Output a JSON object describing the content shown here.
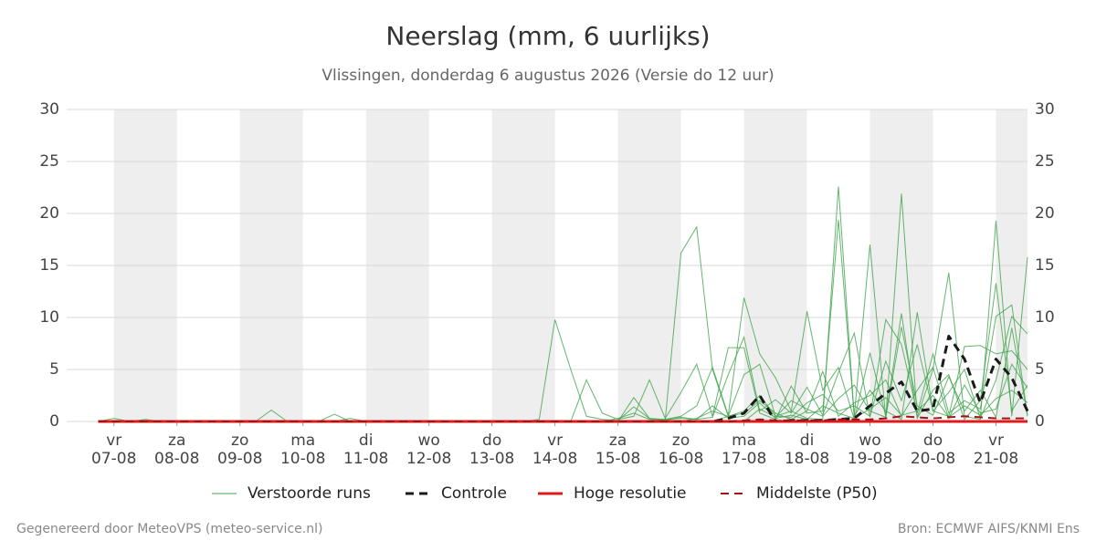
{
  "chart_data": {
    "type": "line",
    "title": "Neerslag (mm, 6 uurlijks)",
    "subtitle": "Vlissingen, donderdag  6 augustus 2026 (Versie do 12 uur)",
    "footer_left": "Gegenereerd door MeteoVPS (meteo-service.nl)",
    "footer_right": "Bron: ECMWF AIFS/KNMI Ens",
    "x": [
      -0.25,
      0,
      0.25,
      0.5,
      0.75,
      1,
      1.25,
      1.5,
      1.75,
      2,
      2.25,
      2.5,
      2.75,
      3,
      3.25,
      3.5,
      3.75,
      4,
      4.25,
      4.5,
      4.75,
      5,
      5.25,
      5.5,
      5.75,
      6,
      6.25,
      6.5,
      6.75,
      7,
      7.25,
      7.5,
      7.75,
      8,
      8.25,
      8.5,
      8.75,
      9,
      9.25,
      9.5,
      9.75,
      10,
      10.25,
      10.5,
      10.75,
      11,
      11.25,
      11.5,
      11.75,
      12,
      12.25,
      12.5,
      12.75,
      13,
      13.25,
      13.5,
      13.75,
      14,
      14.25,
      14.5
    ],
    "xlim": [
      -0.75,
      14.5
    ],
    "xticks": [
      {
        "value": 0,
        "label": "07-08",
        "weekday": "vr"
      },
      {
        "value": 1,
        "label": "08-08",
        "weekday": "za"
      },
      {
        "value": 2,
        "label": "09-08",
        "weekday": "zo"
      },
      {
        "value": 3,
        "label": "10-08",
        "weekday": "ma"
      },
      {
        "value": 4,
        "label": "11-08",
        "weekday": "di"
      },
      {
        "value": 5,
        "label": "12-08",
        "weekday": "wo"
      },
      {
        "value": 6,
        "label": "13-08",
        "weekday": "do"
      },
      {
        "value": 7,
        "label": "14-08",
        "weekday": "vr"
      },
      {
        "value": 8,
        "label": "15-08",
        "weekday": "za"
      },
      {
        "value": 9,
        "label": "16-08",
        "weekday": "zo"
      },
      {
        "value": 10,
        "label": "17-08",
        "weekday": "ma"
      },
      {
        "value": 11,
        "label": "18-08",
        "weekday": "di"
      },
      {
        "value": 12,
        "label": "19-08",
        "weekday": "wo"
      },
      {
        "value": 13,
        "label": "20-08",
        "weekday": "do"
      },
      {
        "value": 14,
        "label": "21-08",
        "weekday": "vr"
      }
    ],
    "ylim": [
      0,
      30
    ],
    "yticks": [
      0,
      5,
      10,
      15,
      20,
      25,
      30
    ],
    "grid": true,
    "ensemble": {
      "name": "Verstoorde runs",
      "color": "#3fa34a",
      "members": [
        [
          0,
          0.3,
          0,
          0,
          0,
          0,
          0,
          0,
          0,
          0,
          0,
          1.1,
          0,
          0,
          0,
          0,
          0,
          0,
          0,
          0,
          0,
          0,
          0,
          0,
          0,
          0,
          0,
          0,
          0.2,
          9.8,
          5.0,
          0.5,
          0.2,
          0.1,
          1.4,
          0.3,
          0.1,
          16.2,
          18.7,
          5.0,
          0.5,
          1.0,
          2.5,
          0.5,
          1.0,
          0.3,
          0.2,
          22.6,
          0.5,
          3.0,
          1.0,
          0.2,
          10.5,
          1.0,
          0.5,
          7.2,
          7.3,
          6.5,
          6.8,
          5.0
        ],
        [
          0,
          0,
          0,
          0,
          0,
          0,
          0,
          0,
          0,
          0,
          0,
          0,
          0,
          0,
          0,
          0.7,
          0,
          0,
          0,
          0,
          0,
          0,
          0,
          0,
          0,
          0,
          0,
          0,
          0,
          0,
          0,
          4.0,
          0.8,
          0.2,
          0.5,
          4.0,
          0.3,
          2.8,
          5.5,
          0.5,
          7.1,
          7.1,
          0.8,
          0.2,
          3.4,
          0.8,
          1.0,
          19.4,
          0.5,
          17.0,
          0.3,
          21.9,
          0.4,
          5.0,
          14.3,
          0.5,
          0.2,
          19.3,
          0.5,
          15.8
        ],
        [
          0,
          0,
          0,
          0,
          0,
          0,
          0,
          0,
          0,
          0,
          0,
          0,
          0,
          0,
          0,
          0,
          0,
          0,
          0,
          0,
          0,
          0,
          0,
          0,
          0,
          0,
          0,
          0,
          0,
          0,
          0,
          0,
          0,
          0,
          2.3,
          0.3,
          0.2,
          0.5,
          1.5,
          5.2,
          0.6,
          11.9,
          6.5,
          4.2,
          1.0,
          10.6,
          3.0,
          5.2,
          0.2,
          6.6,
          0.5,
          10.4,
          0.3,
          3.0,
          4.5,
          0.2,
          2.0,
          13.3,
          1.0,
          3.5
        ],
        [
          0,
          0,
          0,
          0,
          0,
          0,
          0,
          0,
          0,
          0,
          0,
          0,
          0,
          0,
          0,
          0,
          0,
          0,
          0,
          0,
          0,
          0,
          0,
          0,
          0,
          0,
          0,
          0,
          0,
          0,
          0,
          0,
          0,
          0,
          0,
          0,
          0.2,
          0.3,
          0.2,
          0.4,
          4.5,
          8.1,
          1.0,
          2.1,
          0.8,
          3.3,
          0.6,
          4.7,
          8.5,
          0.4,
          9.8,
          7.4,
          0.8,
          6.5,
          0.8,
          2.0,
          1.2,
          10.1,
          11.2,
          0.5
        ],
        [
          0,
          0,
          0,
          0,
          0,
          0,
          0,
          0,
          0,
          0,
          0,
          0,
          0,
          0,
          0,
          0,
          0,
          0,
          0,
          0,
          0,
          0,
          0,
          0,
          0,
          0,
          0,
          0,
          0,
          0,
          0,
          0,
          0,
          0,
          0,
          0,
          0,
          0,
          0,
          0,
          0.5,
          4.5,
          5.5,
          0.5,
          0.4,
          1.8,
          2.6,
          1.0,
          1.5,
          0.5,
          5.8,
          2.0,
          7.4,
          1.0,
          2.8,
          5.0,
          0.3,
          4.0,
          10.1,
          8.4
        ],
        [
          0,
          0,
          0,
          0,
          0,
          0,
          0,
          0,
          0,
          0,
          0,
          0,
          0,
          0,
          0,
          0,
          0,
          0,
          0,
          0,
          0,
          0,
          0,
          0,
          0,
          0,
          0,
          0,
          0,
          0,
          0,
          0,
          0,
          0,
          0,
          0,
          0,
          0,
          0,
          0,
          0,
          0,
          1.2,
          0.4,
          2.0,
          1.2,
          0.5,
          2.2,
          3.5,
          1.0,
          0.4,
          9.1,
          1.5,
          0.6,
          4.3,
          1.0,
          3.0,
          0.4,
          9.0,
          0.6
        ],
        [
          0,
          0,
          0,
          0,
          0,
          0,
          0,
          0,
          0,
          0,
          0,
          0,
          0,
          0,
          0,
          0,
          0,
          0,
          0,
          0,
          0,
          0,
          0,
          0,
          0,
          0,
          0,
          0,
          0,
          0,
          0,
          0,
          0,
          0,
          0,
          0,
          0,
          0,
          0.3,
          1.0,
          0.5,
          0.8,
          2.0,
          0.8,
          0.2,
          1.0,
          4.8,
          0.5,
          1.8,
          2.5,
          4.0,
          0.5,
          3.0,
          5.2,
          0.3,
          3.5,
          0.8,
          1.2,
          5.5,
          3.2
        ],
        [
          0,
          0,
          0,
          0.2,
          0,
          0,
          0,
          0,
          0,
          0,
          0,
          0,
          0,
          0,
          0,
          0,
          0.3,
          0,
          0,
          0,
          0,
          0,
          0,
          0,
          0,
          0,
          0,
          0,
          0,
          0,
          0,
          0,
          0,
          0.3,
          0.8,
          0.2,
          0.1,
          0.4,
          0.2,
          1.5,
          0.3,
          0.5,
          1.8,
          0.3,
          0.6,
          0.2,
          1.5,
          0.8,
          0.3,
          1.2,
          2.3,
          0.6,
          1.0,
          2.5,
          0.4,
          1.5,
          0.6,
          2.2,
          3.0,
          1.8
        ]
      ]
    },
    "series": [
      {
        "name": "Controle",
        "color": "#1a1a1a",
        "dash": true,
        "width": 3,
        "values": [
          0,
          0,
          0,
          0,
          0,
          0,
          0,
          0,
          0,
          0,
          0,
          0,
          0,
          0,
          0,
          0,
          0,
          0,
          0,
          0,
          0,
          0,
          0,
          0,
          0,
          0,
          0,
          0,
          0,
          0,
          0,
          0,
          0,
          0,
          0,
          0,
          0,
          0,
          0,
          0,
          0.3,
          0.8,
          2.5,
          0,
          0.1,
          0.1,
          0.1,
          0.2,
          0.3,
          1.5,
          2.7,
          3.8,
          1.0,
          1.2,
          8.2,
          6.0,
          1.8,
          6.0,
          4.2,
          1.0
        ]
      },
      {
        "name": "Hoge resolutie",
        "color": "#e01a1a",
        "dash": false,
        "width": 3,
        "values": [
          0,
          0,
          0,
          0,
          0,
          0,
          0,
          0,
          0,
          0,
          0,
          0,
          0,
          0,
          0,
          0,
          0,
          0,
          0,
          0,
          0,
          0,
          0,
          0,
          0,
          0,
          0,
          0,
          0,
          0,
          0,
          0,
          0,
          0,
          0,
          0,
          0,
          0,
          0,
          0,
          0,
          0,
          0,
          0,
          0,
          0,
          0,
          0,
          0,
          0,
          0,
          0,
          0,
          0,
          0,
          0,
          0,
          0,
          0,
          0
        ]
      },
      {
        "name": "Middelste (P50)",
        "color": "#a01414",
        "dash": true,
        "width": 2,
        "values": [
          0,
          0,
          0,
          0,
          0,
          0,
          0,
          0,
          0,
          0,
          0,
          0,
          0,
          0,
          0,
          0,
          0,
          0,
          0,
          0,
          0,
          0,
          0,
          0,
          0,
          0,
          0,
          0,
          0,
          0,
          0,
          0,
          0,
          0,
          0,
          0,
          0,
          0,
          0,
          0,
          0,
          0.1,
          0.2,
          0.1,
          0.1,
          0.1,
          0.1,
          0.2,
          0.2,
          0.2,
          0.3,
          0.5,
          0.4,
          0.3,
          0.4,
          0.5,
          0.4,
          0.3,
          0.3,
          0.3
        ]
      }
    ]
  }
}
